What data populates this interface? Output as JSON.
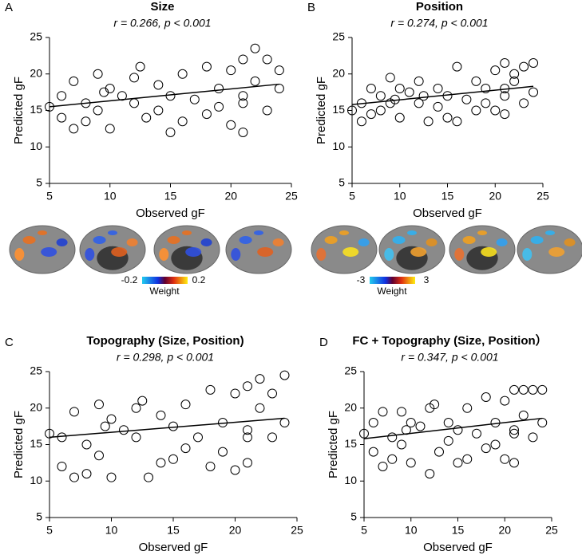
{
  "chart_data": [
    {
      "type": "scatter",
      "panel_label": "A",
      "title": "Size",
      "annotation": "r = 0.266, p < 0.001",
      "xlabel": "Observed gF",
      "ylabel": "Predicted gF",
      "xlim": [
        5,
        25
      ],
      "ylim": [
        5,
        25
      ],
      "xticks": [
        5,
        10,
        15,
        20,
        25
      ],
      "yticks": [
        5,
        10,
        15,
        20,
        25
      ],
      "color": "#000000",
      "x": [
        5,
        6,
        6,
        7,
        7,
        8,
        8,
        9,
        9,
        10,
        10,
        11,
        12,
        12,
        13,
        14,
        14,
        15,
        15,
        16,
        16,
        17,
        18,
        18,
        19,
        19,
        20,
        20,
        21,
        21,
        21,
        22,
        22,
        23,
        23,
        24,
        24,
        12.5,
        9.5,
        21
      ],
      "values": [
        15.5,
        14,
        17,
        12.5,
        19,
        16,
        13.5,
        20,
        15,
        18,
        12.5,
        17,
        16,
        19.5,
        14,
        18.5,
        15,
        17,
        12,
        20,
        13.5,
        16.5,
        21,
        14.5,
        18,
        15.5,
        20.5,
        13,
        22,
        16,
        12,
        19,
        23.5,
        15,
        22,
        18,
        20.5,
        21,
        17.5,
        17
      ],
      "fit": {
        "x": [
          5,
          24
        ],
        "values": [
          15.5,
          18.6
        ]
      }
    },
    {
      "type": "scatter",
      "panel_label": "B",
      "title": "Position",
      "annotation": "r = 0.274, p < 0.001",
      "xlabel": "Observed gF",
      "ylabel": "Predicted gF",
      "xlim": [
        5,
        25
      ],
      "ylim": [
        5,
        25
      ],
      "xticks": [
        5,
        10,
        15,
        20,
        25
      ],
      "yticks": [
        5,
        10,
        15,
        20,
        25
      ],
      "color": "#000000",
      "x": [
        5,
        6,
        6,
        7,
        7,
        8,
        8,
        9,
        9,
        10,
        10,
        11,
        12,
        12,
        13,
        14,
        14,
        15,
        15,
        16,
        16,
        17,
        18,
        18,
        19,
        19,
        20,
        20,
        21,
        21,
        21,
        22,
        22,
        23,
        23,
        24,
        24,
        12.5,
        9.5,
        21
      ],
      "values": [
        15,
        13.5,
        16,
        14.5,
        18,
        17,
        15,
        19.5,
        16,
        18,
        14,
        17.5,
        16,
        19,
        13.5,
        18,
        15.5,
        17,
        14,
        21,
        13.5,
        16.5,
        19,
        15,
        18,
        16,
        20.5,
        15,
        21.5,
        17,
        14.5,
        19,
        20,
        16,
        21,
        17.5,
        21.5,
        17,
        16.5,
        18
      ],
      "fit": {
        "x": [
          5,
          24
        ],
        "values": [
          15.8,
          18.3
        ]
      }
    },
    {
      "type": "scatter",
      "panel_label": "C",
      "title": "Topography (Size, Position)",
      "annotation": "r = 0.298, p < 0.001",
      "xlabel": "Observed gF",
      "ylabel": "Predicted gF",
      "xlim": [
        5,
        25
      ],
      "ylim": [
        5,
        25
      ],
      "xticks": [
        5,
        10,
        15,
        20,
        25
      ],
      "yticks": [
        5,
        10,
        15,
        20,
        25
      ],
      "color": "#000000",
      "x": [
        5,
        6,
        6,
        7,
        7,
        8,
        8,
        9,
        9,
        10,
        10,
        11,
        12,
        12,
        13,
        14,
        14,
        15,
        15,
        16,
        16,
        17,
        18,
        18,
        19,
        19,
        20,
        20,
        21,
        21,
        21,
        22,
        22,
        23,
        23,
        24,
        24,
        12.5,
        9.5,
        21
      ],
      "values": [
        16.5,
        16,
        12,
        19.5,
        10.5,
        15,
        11,
        20.5,
        13.5,
        18.5,
        10.5,
        17,
        16,
        20,
        10.5,
        19,
        12.5,
        17.5,
        13,
        20.5,
        14.5,
        16,
        22.5,
        12,
        18,
        14,
        22,
        11.5,
        23,
        16,
        12.5,
        20,
        24,
        16,
        22,
        18,
        24.5,
        21,
        17.5,
        17
      ],
      "fit": {
        "x": [
          5,
          24
        ],
        "values": [
          16,
          18.6
        ]
      }
    },
    {
      "type": "scatter",
      "panel_label": "D",
      "title": "FC + Topography (Size, Position）",
      "annotation": "r = 0.347, p < 0.001",
      "xlabel": "Observed gF",
      "ylabel": "Predicted gF",
      "xlim": [
        5,
        25
      ],
      "ylim": [
        5,
        25
      ],
      "xticks": [
        5,
        10,
        15,
        20,
        25
      ],
      "yticks": [
        5,
        10,
        15,
        20,
        25
      ],
      "color": "#000000",
      "x": [
        5,
        6,
        6,
        7,
        7,
        8,
        8,
        9,
        9,
        10,
        10,
        11,
        12,
        12,
        13,
        14,
        14,
        15,
        15,
        16,
        16,
        17,
        18,
        18,
        19,
        19,
        20,
        20,
        21,
        21,
        21,
        22,
        22,
        23,
        23,
        24,
        24,
        12.5,
        9.5,
        21
      ],
      "values": [
        16.5,
        14,
        18,
        12,
        19.5,
        16,
        13,
        19.5,
        15,
        18,
        12.5,
        17.5,
        11,
        20,
        14,
        18,
        15.5,
        17,
        12.5,
        20,
        13,
        16.5,
        21.5,
        14.5,
        18,
        15,
        21,
        13,
        22.5,
        16.5,
        12.5,
        19,
        22.5,
        16,
        22.5,
        18,
        22.5,
        20.5,
        17,
        17
      ],
      "fit": {
        "x": [
          5,
          24
        ],
        "values": [
          15.8,
          18.6
        ]
      }
    }
  ],
  "colorbars": [
    {
      "ticks": [
        -0.2,
        0.2
      ],
      "label": "Weight"
    },
    {
      "ticks": [
        -3,
        3
      ],
      "label": "Weight"
    }
  ]
}
